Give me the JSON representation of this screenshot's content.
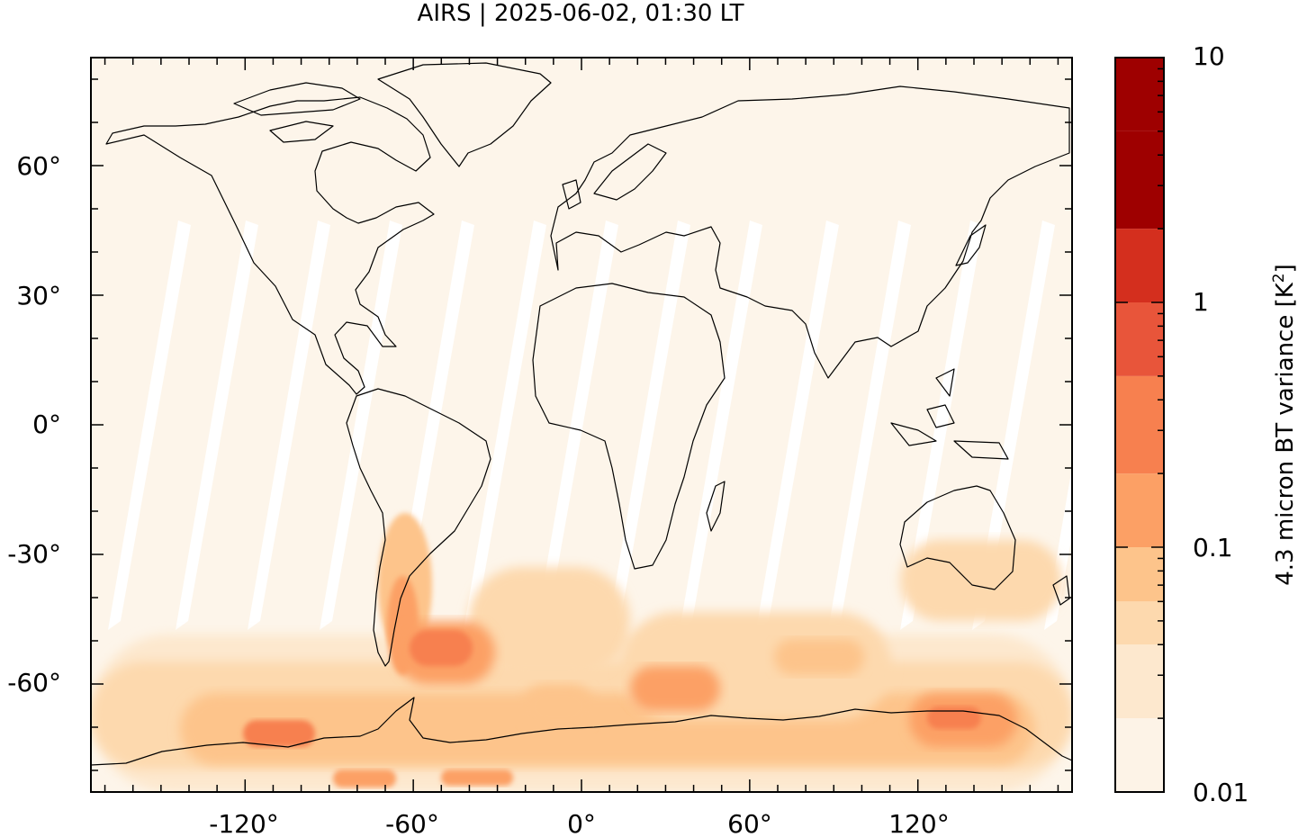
{
  "title": "AIRS | 2025-06-02, 01:30 LT",
  "colorbar": {
    "label": "4.3 micron BT variance [K",
    "label_superscript": "2",
    "label_suffix": "]",
    "scale": "log",
    "tick_labels": [
      "10",
      "1",
      "0.1",
      "0.01"
    ],
    "levels": [
      0.01,
      0.02,
      0.04,
      0.06,
      0.1,
      0.2,
      0.5,
      1,
      2,
      5,
      10
    ],
    "colors": [
      "#fdf3e7",
      "#fde8ce",
      "#fdd9ae",
      "#fdc48b",
      "#fca065",
      "#f7804f",
      "#e8553a",
      "#d42f1e",
      "#9e0000",
      "#9e0000"
    ]
  },
  "map": {
    "x_tick_labels": [
      "-120°",
      "-60°",
      "0°",
      "60°",
      "120°"
    ],
    "x_tick_values": [
      -120,
      -60,
      0,
      60,
      120
    ],
    "y_tick_labels": [
      "60°",
      "30°",
      "0°",
      "-30°",
      "-60°"
    ],
    "y_tick_values": [
      60,
      30,
      0,
      -30,
      -60
    ],
    "lon_range": [
      -175,
      175
    ],
    "lat_range": [
      -85,
      85
    ],
    "background_color": "#fdf5ea",
    "coastline_color": "#000000",
    "gap_color": "#ffffff"
  }
}
